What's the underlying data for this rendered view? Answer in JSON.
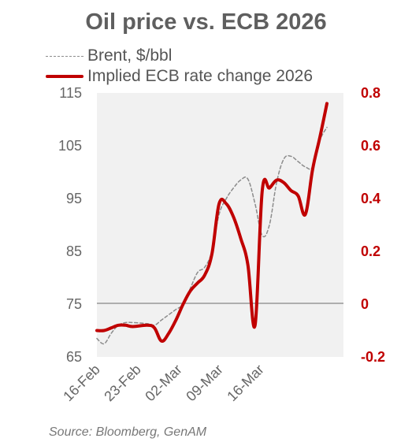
{
  "chart_data": {
    "type": "line",
    "title": "Oil price vs. ECB 2026",
    "source": "Source: Bloomberg, GenAM",
    "x_ticks": [
      "16-Feb",
      "23-Feb",
      "02-Mar",
      "09-Mar",
      "16-Mar"
    ],
    "y_left": {
      "ticks": [
        "115",
        "105",
        "95",
        "85",
        "75",
        "65"
      ],
      "ylim": [
        65,
        115
      ]
    },
    "y_right": {
      "ticks": [
        "0.8",
        "0.6",
        "0.4",
        "0.2",
        "0",
        "-0.2"
      ],
      "ylim": [
        -0.2,
        0.8
      ]
    },
    "reference_line": {
      "axis": "right",
      "value": 0
    },
    "grid": false,
    "legend_position": "top-left",
    "series": [
      {
        "name": "Brent, $/bbl",
        "axis": "left",
        "style": "dashed",
        "color": "#8c8c8c",
        "x": [
          "2026-02-16",
          "2026-02-17",
          "2026-02-18",
          "2026-02-19",
          "2026-02-20",
          "2026-02-21",
          "2026-02-23",
          "2026-02-24",
          "2026-02-25",
          "2026-02-26",
          "2026-02-27",
          "2026-02-28",
          "2026-03-01",
          "2026-03-02",
          "2026-03-03",
          "2026-03-04",
          "2026-03-05",
          "2026-03-06",
          "2026-03-07",
          "2026-03-08",
          "2026-03-09",
          "2026-03-10",
          "2026-03-11",
          "2026-03-12",
          "2026-03-13",
          "2026-03-14",
          "2026-03-15",
          "2026-03-16",
          "2026-03-17",
          "2026-03-18",
          "2026-03-19",
          "2026-03-20"
        ],
        "values": [
          68.5,
          67.5,
          69.5,
          71.0,
          71.5,
          71.5,
          71.3,
          71.0,
          72.0,
          73.0,
          74.0,
          75.0,
          78.0,
          81.0,
          82.0,
          85.0,
          92.0,
          95.0,
          97.0,
          98.5,
          98.7,
          94.0,
          88.0,
          90.0,
          98.0,
          102.5,
          103.0,
          102.0,
          101.0,
          101.0,
          106.0,
          108.5
        ]
      },
      {
        "name": "Implied ECB rate change 2026",
        "axis": "right",
        "style": "solid",
        "color": "#c00000",
        "x": [
          "2026-02-16",
          "2026-02-17",
          "2026-02-18",
          "2026-02-19",
          "2026-02-20",
          "2026-02-21",
          "2026-02-23",
          "2026-02-24",
          "2026-02-25",
          "2026-02-26",
          "2026-02-27",
          "2026-02-28",
          "2026-03-01",
          "2026-03-02",
          "2026-03-03",
          "2026-03-04",
          "2026-03-05",
          "2026-03-06",
          "2026-03-07",
          "2026-03-08",
          "2026-03-09",
          "2026-03-10",
          "2026-03-11",
          "2026-03-12",
          "2026-03-13",
          "2026-03-14",
          "2026-03-15",
          "2026-03-16",
          "2026-03-17",
          "2026-03-18",
          "2026-03-19",
          "2026-03-20"
        ],
        "values": [
          -0.1,
          -0.1,
          -0.09,
          -0.08,
          -0.08,
          -0.085,
          -0.08,
          -0.09,
          -0.14,
          -0.11,
          -0.06,
          0.0,
          0.05,
          0.08,
          0.11,
          0.19,
          0.38,
          0.38,
          0.33,
          0.25,
          0.15,
          -0.08,
          0.43,
          0.44,
          0.47,
          0.46,
          0.43,
          0.41,
          0.34,
          0.51,
          0.63,
          0.76
        ]
      }
    ]
  }
}
